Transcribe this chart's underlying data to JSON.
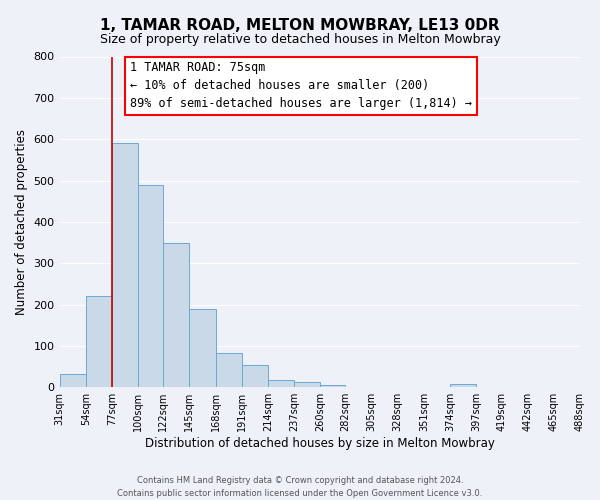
{
  "title": "1, TAMAR ROAD, MELTON MOWBRAY, LE13 0DR",
  "subtitle": "Size of property relative to detached houses in Melton Mowbray",
  "xlabel": "Distribution of detached houses by size in Melton Mowbray",
  "ylabel": "Number of detached properties",
  "bin_edges": [
    31,
    54,
    77,
    100,
    122,
    145,
    168,
    191,
    214,
    237,
    260,
    282,
    305,
    328,
    351,
    374,
    397,
    419,
    442,
    465,
    488
  ],
  "bar_heights": [
    33,
    220,
    590,
    490,
    350,
    188,
    83,
    53,
    18,
    13,
    5,
    0,
    0,
    0,
    0,
    7,
    0,
    0,
    0,
    0
  ],
  "bar_color": "#c9d9e8",
  "bar_edgecolor": "#6aaad4",
  "property_line_x": 77,
  "property_line_color": "#cc0000",
  "ylim": [
    0,
    800
  ],
  "yticks": [
    0,
    100,
    200,
    300,
    400,
    500,
    600,
    700,
    800
  ],
  "annotation_title": "1 TAMAR ROAD: 75sqm",
  "annotation_line1": "← 10% of detached houses are smaller (200)",
  "annotation_line2": "89% of semi-detached houses are larger (1,814) →",
  "footer_line1": "Contains HM Land Registry data © Crown copyright and database right 2024.",
  "footer_line2": "Contains public sector information licensed under the Open Government Licence v3.0.",
  "bg_color": "#eef2f8",
  "grid_color": "#ffffff",
  "tick_labels": [
    "31sqm",
    "54sqm",
    "77sqm",
    "100sqm",
    "122sqm",
    "145sqm",
    "168sqm",
    "191sqm",
    "214sqm",
    "237sqm",
    "260sqm",
    "282sqm",
    "305sqm",
    "328sqm",
    "351sqm",
    "374sqm",
    "397sqm",
    "419sqm",
    "442sqm",
    "465sqm",
    "488sqm"
  ]
}
